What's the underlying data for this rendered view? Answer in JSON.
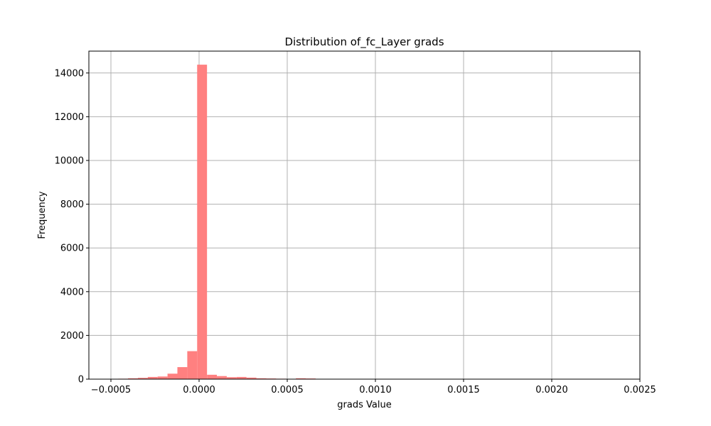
{
  "chart_data": {
    "type": "bar",
    "title": "Distribution of_fc_Layer grads",
    "xlabel": "grads Value",
    "ylabel": "Frequency",
    "xlim": [
      -0.000625,
      0.0025
    ],
    "ylim": [
      0,
      15000
    ],
    "xticks": [
      -0.0005,
      0.0,
      0.0005,
      0.001,
      0.0015,
      0.002,
      0.0025
    ],
    "xtick_labels": [
      "−0.0005",
      "0.0000",
      "0.0005",
      "0.0010",
      "0.0015",
      "0.0020",
      "0.0025"
    ],
    "yticks": [
      0,
      2000,
      4000,
      6000,
      8000,
      10000,
      12000,
      14000
    ],
    "ytick_labels": [
      "0",
      "2000",
      "4000",
      "6000",
      "8000",
      "10000",
      "12000",
      "14000"
    ],
    "grid": true,
    "color": "#ff8080",
    "bin_edges": [
      -0.000459,
      -0.000403,
      -0.000347,
      -0.000291,
      -0.000235,
      -0.000179,
      -0.000123,
      -6.7e-05,
      -1.1e-05,
      4.5e-05,
      0.000101,
      0.000157,
      0.000213,
      0.000269,
      0.000325,
      0.000381,
      0.000437,
      0.000493,
      0.000549,
      0.000605,
      0.000661
    ],
    "values": [
      20,
      40,
      60,
      100,
      120,
      250,
      550,
      1280,
      14380,
      200,
      140,
      90,
      100,
      70,
      40,
      30,
      20,
      15,
      40,
      30
    ]
  }
}
